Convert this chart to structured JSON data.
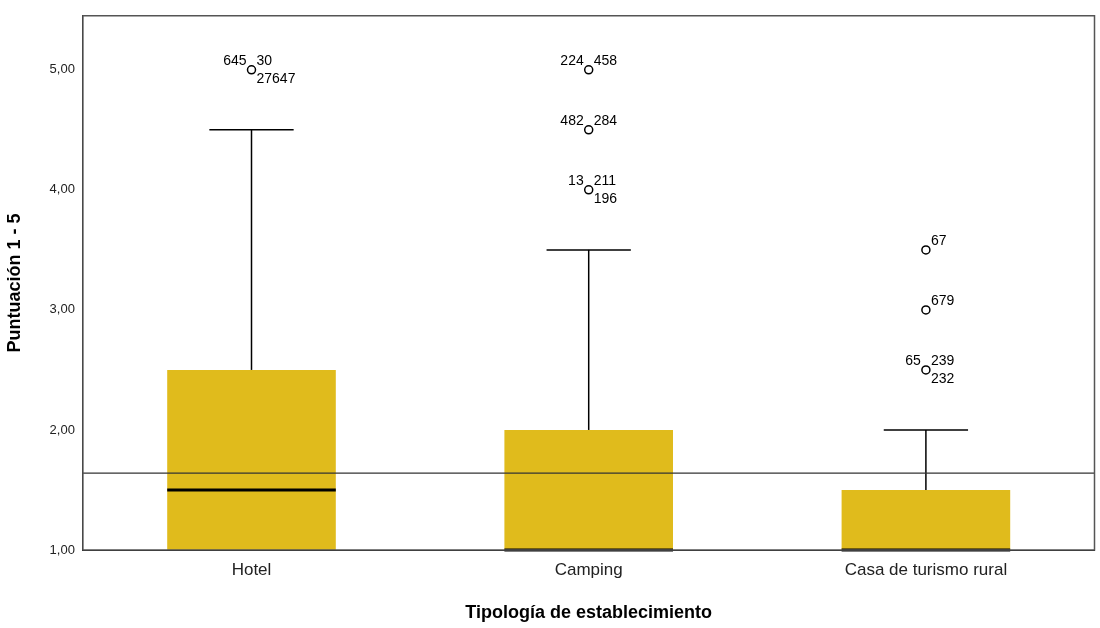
{
  "chart_data": {
    "type": "box",
    "xlabel": "Tipología de establecimiento",
    "ylabel": "Puntuación 1 - 5",
    "categories": [
      "Hotel",
      "Camping",
      "Casa de turismo rural"
    ],
    "series": [
      {
        "color": "#e0bb1c",
        "boxes": [
          {
            "low": 1,
            "q1": 1,
            "median": 1.5,
            "q3": 2.5,
            "high": 4.5,
            "outliers": [
              5
            ]
          },
          {
            "low": 1,
            "q1": 1,
            "median": 1,
            "q3": 2,
            "high": 3.5,
            "outliers": [
              4,
              4.5,
              5
            ]
          },
          {
            "low": 1,
            "q1": 1,
            "median": 1,
            "q3": 1.5,
            "high": 2,
            "outliers": [
              2.5,
              3,
              3.5
            ]
          }
        ]
      }
    ],
    "ylim": [
      1,
      5.45
    ],
    "yticks": [
      {
        "value": 1,
        "label": "1,00"
      },
      {
        "value": 2,
        "label": "2,00"
      },
      {
        "value": 3,
        "label": "3,00"
      },
      {
        "value": 4,
        "label": "4,00"
      },
      {
        "value": 5,
        "label": "5,00"
      }
    ],
    "ref_lines": [
      {
        "axis": "y",
        "value": 1.64,
        "color": "#333333"
      }
    ],
    "grid": false,
    "legend": false,
    "annotations": [
      "30 645 27647",
      "211 13 196",
      "284 482",
      "458 224",
      "239 65 232",
      "679",
      "67"
    ]
  }
}
